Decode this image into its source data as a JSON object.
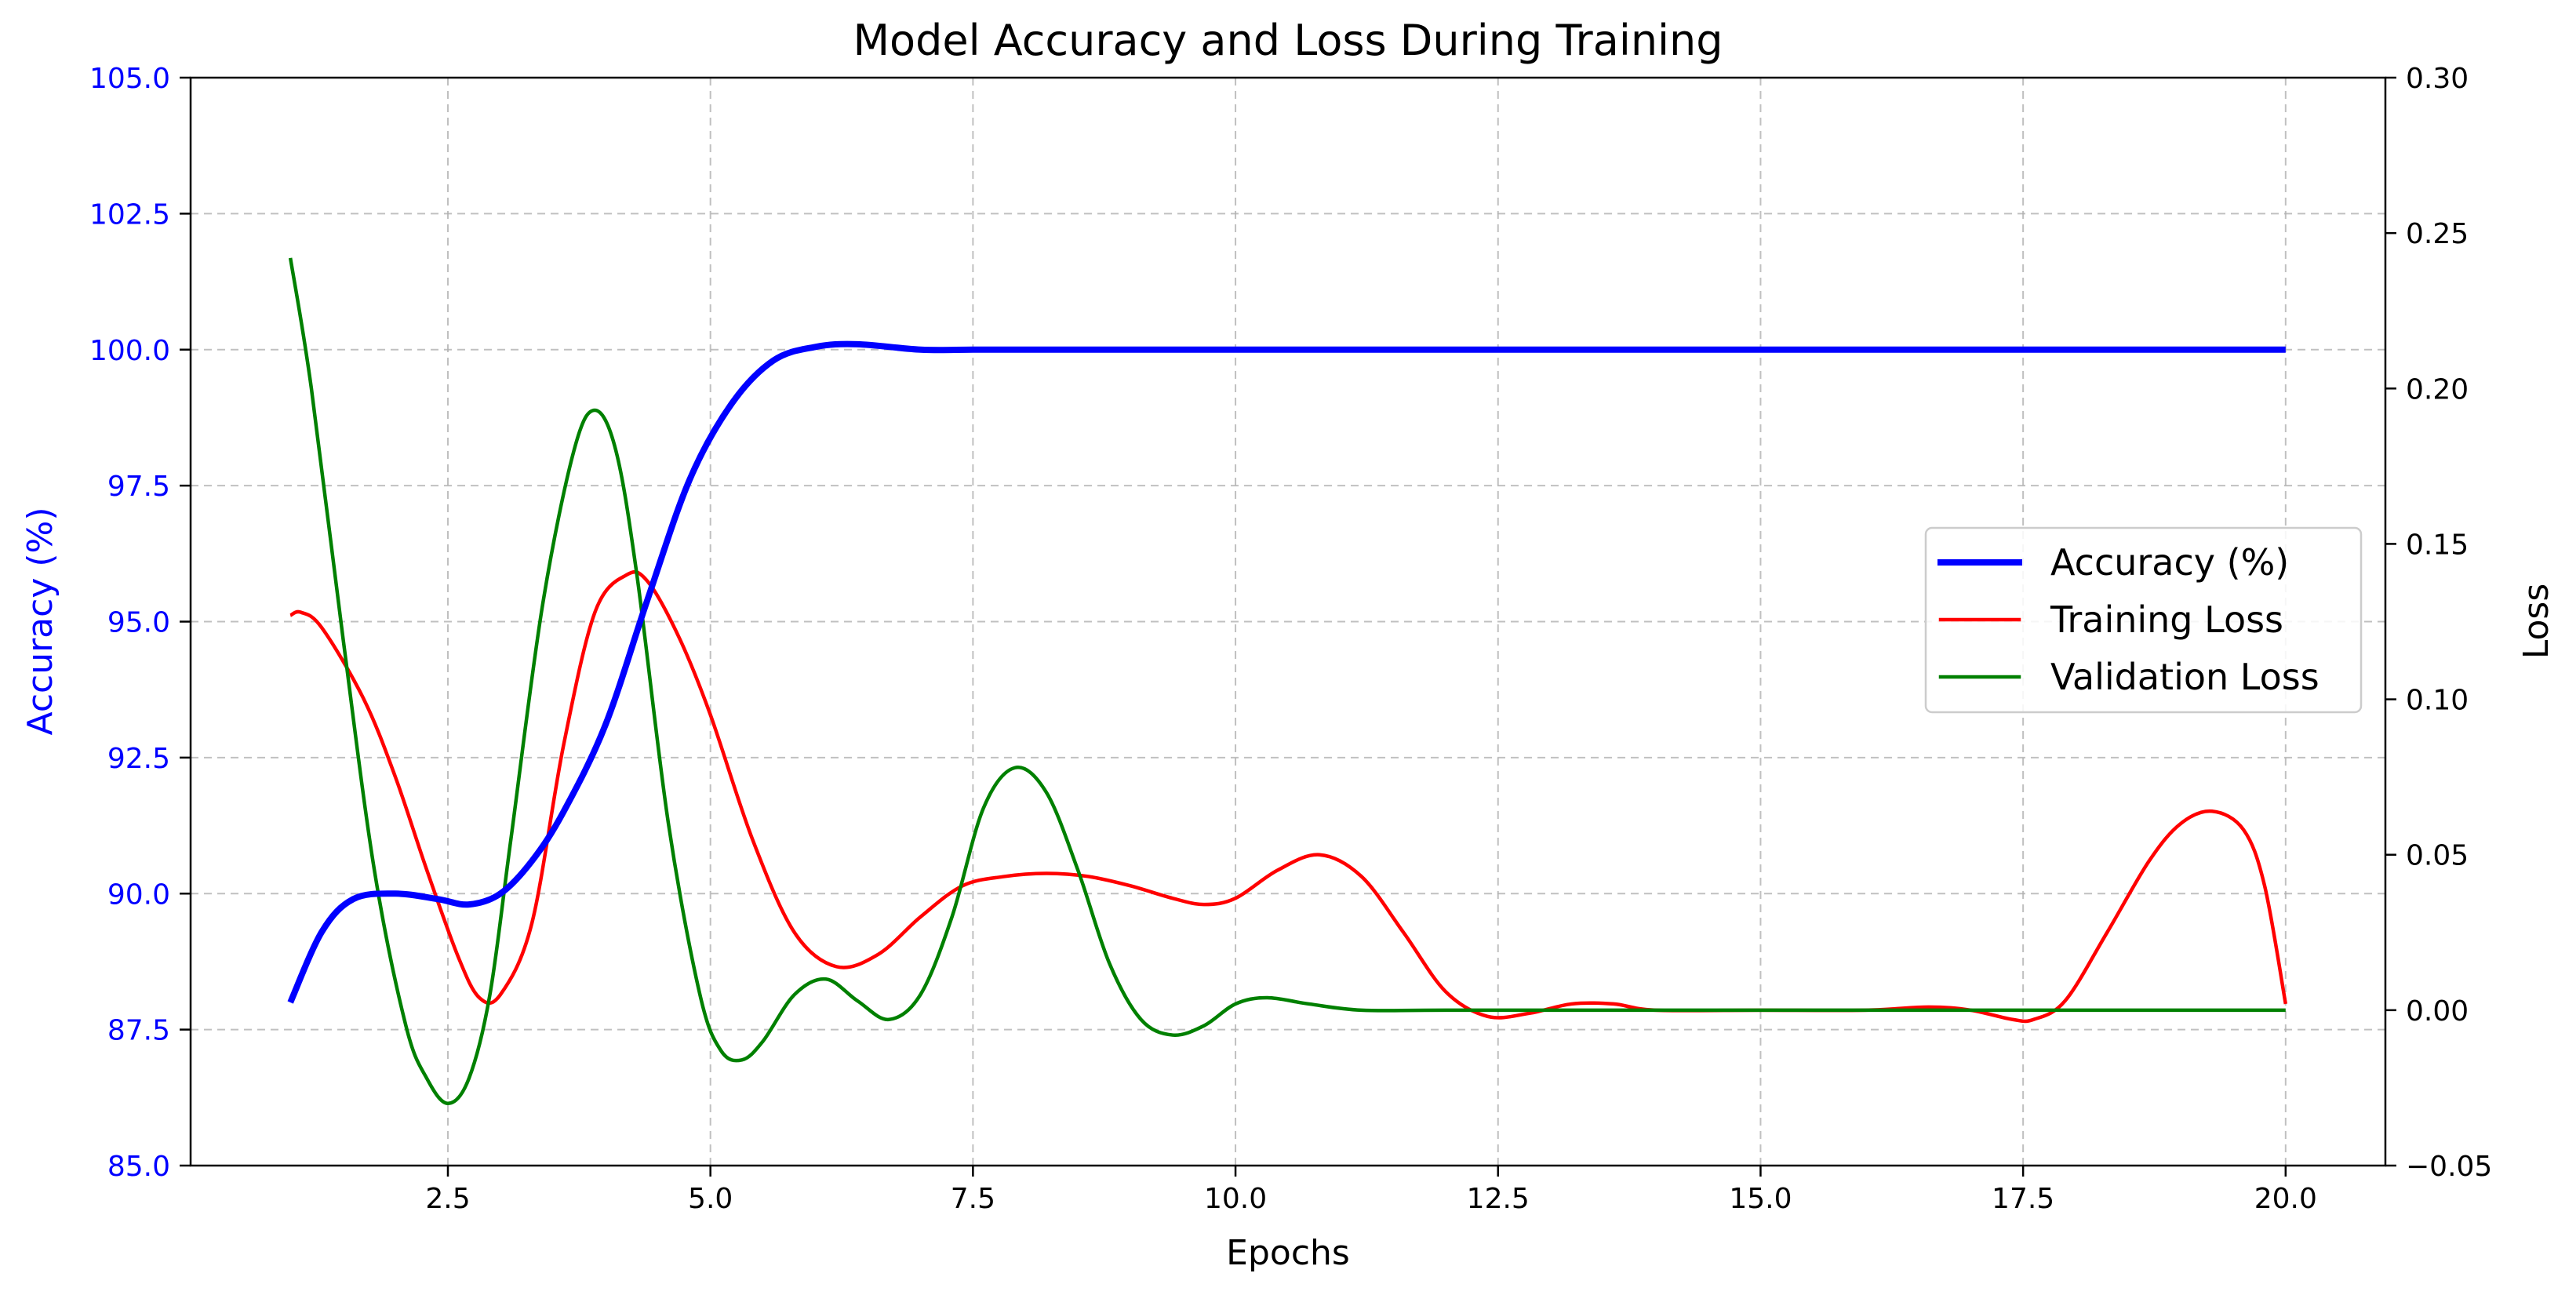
{
  "chart_data": {
    "type": "line",
    "title": "Model Accuracy and Loss During Training",
    "xlabel": "Epochs",
    "ylabel_left": "Accuracy (%)",
    "ylabel_right": "Loss",
    "xlim": [
      0.05,
      20.95
    ],
    "ylim_left": [
      85.0,
      105.0
    ],
    "ylim_right": [
      -0.05,
      0.3
    ],
    "xticks": [
      2.5,
      5.0,
      7.5,
      10.0,
      12.5,
      15.0,
      17.5,
      20.0
    ],
    "xtick_labels": [
      "2.5",
      "5.0",
      "7.5",
      "10.0",
      "12.5",
      "15.0",
      "17.5",
      "20.0"
    ],
    "yticks_left": [
      85.0,
      87.5,
      90.0,
      92.5,
      95.0,
      97.5,
      100.0,
      102.5,
      105.0
    ],
    "ytick_labels_left": [
      "85.0",
      "87.5",
      "90.0",
      "92.5",
      "95.0",
      "97.5",
      "100.0",
      "102.5",
      "105.0"
    ],
    "yticks_right": [
      -0.05,
      0.0,
      0.05,
      0.1,
      0.15,
      0.2,
      0.25,
      0.3
    ],
    "ytick_labels_right": [
      "−0.05",
      "0.00",
      "0.05",
      "0.10",
      "0.15",
      "0.20",
      "0.25",
      "0.30"
    ],
    "grid": true,
    "legend_position": "center-right",
    "series": [
      {
        "name": "Accuracy (%)",
        "axis": "left",
        "color": "#0000ff",
        "x": [
          1.0,
          1.3,
          1.6,
          2.0,
          2.4,
          2.7,
          3.0,
          3.3,
          3.6,
          4.0,
          4.4,
          4.8,
          5.2,
          5.6,
          6.0,
          6.4,
          7.0,
          7.5,
          8.0,
          9.0,
          10.0,
          12.0,
          14.0,
          16.0,
          18.0,
          20.0
        ],
        "y": [
          88.0,
          89.3,
          89.9,
          90.0,
          89.9,
          89.8,
          90.0,
          90.6,
          91.5,
          93.1,
          95.4,
          97.6,
          99.0,
          99.8,
          100.05,
          100.1,
          100.0,
          100.0,
          100.0,
          100.0,
          100.0,
          100.0,
          100.0,
          100.0,
          100.0,
          100.0
        ]
      },
      {
        "name": "Training Loss",
        "axis": "right",
        "color": "#ff0000",
        "x": [
          1.0,
          1.1,
          1.3,
          1.7,
          2.0,
          2.3,
          2.6,
          2.8,
          3.0,
          3.3,
          3.6,
          3.9,
          4.2,
          4.4,
          4.7,
          5.0,
          5.4,
          5.8,
          6.2,
          6.6,
          7.0,
          7.4,
          7.8,
          8.2,
          8.6,
          9.0,
          9.4,
          9.7,
          10.0,
          10.4,
          10.8,
          11.2,
          11.6,
          12.0,
          12.4,
          12.8,
          13.2,
          13.6,
          14.0,
          15.0,
          16.0,
          16.6,
          17.0,
          17.4,
          17.6,
          17.9,
          18.3,
          18.7,
          19.0,
          19.3,
          19.6,
          19.8,
          20.0
        ],
        "y": [
          0.127,
          0.128,
          0.123,
          0.1,
          0.075,
          0.045,
          0.017,
          0.004,
          0.005,
          0.028,
          0.085,
          0.128,
          0.14,
          0.138,
          0.12,
          0.095,
          0.055,
          0.025,
          0.014,
          0.018,
          0.03,
          0.04,
          0.043,
          0.044,
          0.043,
          0.04,
          0.036,
          0.034,
          0.036,
          0.045,
          0.05,
          0.043,
          0.025,
          0.006,
          -0.002,
          -0.001,
          0.002,
          0.002,
          0.0,
          0.0,
          0.0,
          0.001,
          0.0,
          -0.003,
          -0.003,
          0.003,
          0.025,
          0.048,
          0.06,
          0.064,
          0.058,
          0.04,
          0.002
        ]
      },
      {
        "name": "Validation Loss",
        "axis": "right",
        "color": "#008000",
        "x": [
          1.0,
          1.2,
          1.5,
          1.8,
          2.1,
          2.3,
          2.5,
          2.7,
          2.9,
          3.1,
          3.4,
          3.7,
          3.9,
          4.1,
          4.3,
          4.6,
          4.9,
          5.1,
          5.3,
          5.5,
          5.8,
          6.1,
          6.4,
          6.7,
          7.0,
          7.3,
          7.6,
          7.9,
          8.2,
          8.5,
          8.8,
          9.1,
          9.4,
          9.7,
          10.0,
          10.3,
          10.7,
          11.2,
          12.0,
          14.0,
          16.0,
          18.0,
          20.0
        ],
        "y": [
          0.242,
          0.2,
          0.12,
          0.045,
          -0.005,
          -0.022,
          -0.03,
          -0.022,
          0.005,
          0.055,
          0.13,
          0.18,
          0.193,
          0.18,
          0.14,
          0.06,
          0.005,
          -0.013,
          -0.016,
          -0.01,
          0.005,
          0.01,
          0.003,
          -0.003,
          0.005,
          0.03,
          0.065,
          0.078,
          0.07,
          0.045,
          0.015,
          -0.003,
          -0.008,
          -0.005,
          0.002,
          0.004,
          0.002,
          0.0,
          0.0,
          0.0,
          0.0,
          0.0,
          0.0
        ]
      }
    ]
  }
}
